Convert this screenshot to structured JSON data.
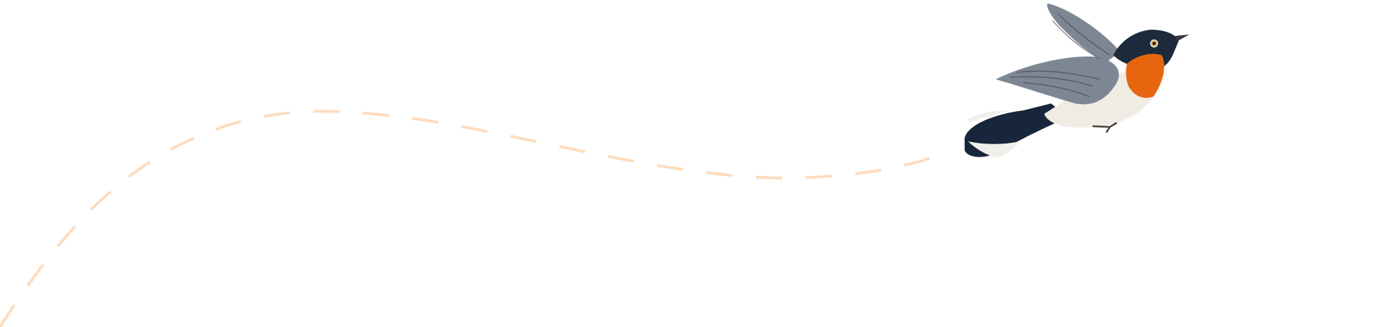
{
  "scene": {
    "background": "#ffffff",
    "flight_path_color": "#fddcbc",
    "bird": {
      "throat_color": "#e8650f",
      "head_color": "#1c2a3c",
      "wing_color": "#7d8794",
      "belly_color": "#efece4",
      "tail_color": "#17263a"
    }
  }
}
